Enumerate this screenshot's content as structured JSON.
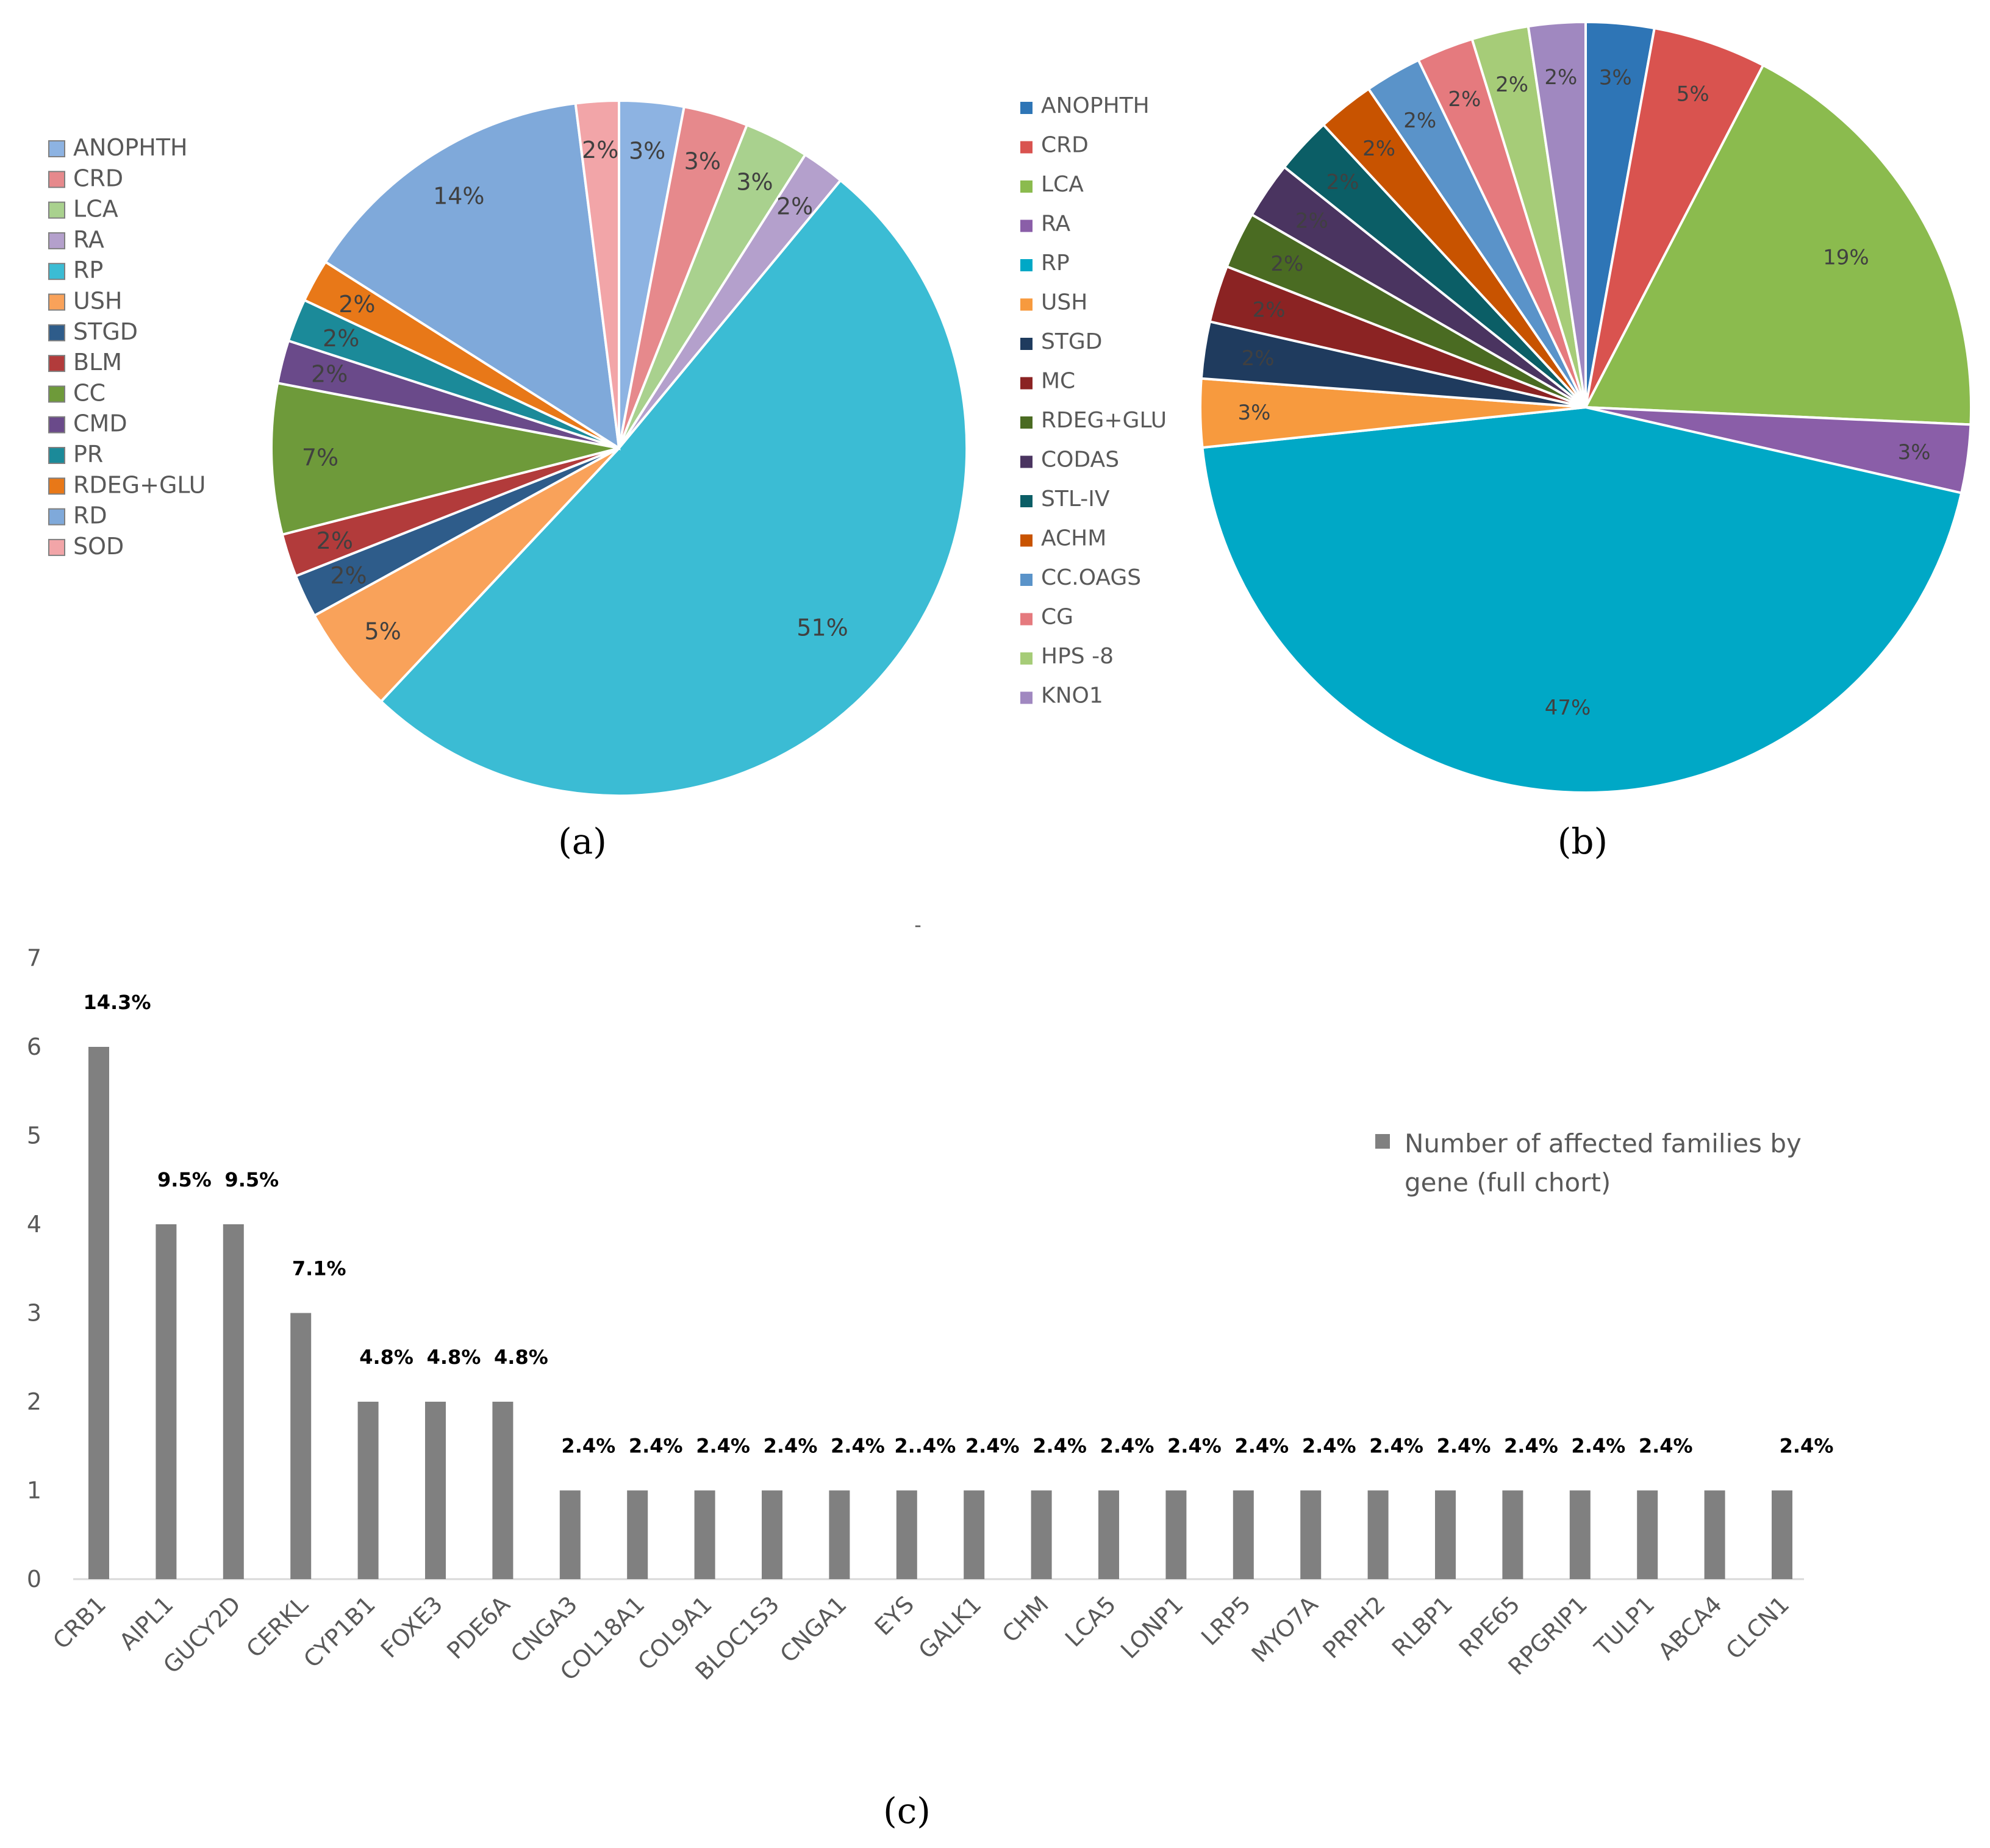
{
  "chart_data": [
    {
      "type": "pie",
      "panel": "(a)",
      "labels": [
        "ANOPHTH",
        "CRD",
        "LCA",
        "RA",
        "RP",
        "USH",
        "STGD",
        "BLM",
        "CC",
        "CMD",
        "PR",
        "RDEG+GLU",
        "RD",
        "SOD"
      ],
      "values": [
        3,
        3,
        3,
        2,
        51,
        5,
        2,
        2,
        7,
        2,
        2,
        2,
        14,
        2
      ],
      "value_labels": [
        "3%",
        "3%",
        "3%",
        "2%",
        "51%",
        "5%",
        "2%",
        "2%",
        "7%",
        "2%",
        "2%",
        "2%",
        "14%",
        "2%"
      ],
      "colors": [
        "#8db3e2",
        "#e6898c",
        "#a9d18e",
        "#b4a0cc",
        "#3bbcd4",
        "#f9a25a",
        "#2e5c8a",
        "#b23b3b",
        "#6e9a3a",
        "#6a4a8a",
        "#1b8a99",
        "#e87818",
        "#7fa9da",
        "#f2a5a8"
      ],
      "legend": "left"
    },
    {
      "type": "pie",
      "panel": "(b)",
      "labels": [
        "ANOPHTH",
        "CRD",
        "LCA",
        "RA",
        "RP",
        "USH",
        "STGD",
        "MC",
        "RDEG+GLU",
        "CODAS",
        "STL-IV",
        "ACHM",
        "CC.OAGS",
        "CG",
        "HPS -8",
        "KNO1"
      ],
      "values": [
        3,
        5,
        19,
        3,
        47,
        3,
        2.5,
        2.5,
        2.5,
        2.5,
        2.5,
        2.5,
        2.5,
        2.5,
        2.5,
        2.5
      ],
      "value_labels": [
        "3%",
        "5%",
        "19%",
        "3%",
        "47%",
        "3%",
        "2%",
        "2%",
        "2%",
        "2%",
        "2%",
        "2%",
        "2%",
        "2%",
        "2%",
        "2%"
      ],
      "colors": [
        "#2e75b6",
        "#d9534f",
        "#8bbb4e",
        "#8a5ea8",
        "#00a8c6",
        "#f79a3e",
        "#1f3b5e",
        "#8b2323",
        "#4a6b22",
        "#4a3460",
        "#0b5e66",
        "#c85300",
        "#5a93c9",
        "#e57a7e",
        "#a6cc78",
        "#a088c0"
      ],
      "legend": "left"
    },
    {
      "type": "bar",
      "panel": "(c)",
      "categories": [
        "CRB1",
        "AIPL1",
        "GUCY2D",
        "CERKL",
        "CYP1B1",
        "FOXE3",
        "PDE6A",
        "CNGA3",
        "COL18A1",
        "COL9A1",
        "BLOC1S3",
        "CNGA1",
        "EYS",
        "GALK1",
        "CHM",
        "LCA5",
        "LONP1",
        "LRP5",
        "MYO7A",
        "PRPH2",
        "RLBP1",
        "RPE65",
        "RPGRIP1",
        "TULP1",
        "ABCA4",
        "CLCN1"
      ],
      "values": [
        6,
        4,
        4,
        3,
        2,
        2,
        2,
        1,
        1,
        1,
        1,
        1,
        1,
        1,
        1,
        1,
        1,
        1,
        1,
        1,
        1,
        1,
        1,
        1,
        1,
        1
      ],
      "data_labels": [
        "14.3%",
        "9.5%",
        "9.5%",
        "7.1%",
        "4.8%",
        "4.8%",
        "4.8%",
        "2.4%",
        "2.4%",
        "2.4%",
        "2.4%",
        "2.4%",
        "2..4%",
        "2.4%",
        "2.4%",
        "2.4%",
        "2.4%",
        "2.4%",
        "2.4%",
        "2.4%",
        "2.4%",
        "2.4%",
        "2.4%",
        "2.4%",
        "",
        "2.4%"
      ],
      "yticks": [
        "0",
        "1",
        "2",
        "3",
        "4",
        "5",
        "6",
        "7"
      ],
      "ylim": [
        0,
        7
      ],
      "legend_label": "Number of affected families by gene (full chort)",
      "legend_lines": [
        "Number of affected families by",
        "gene (full chort)"
      ],
      "bar_color": "#808080",
      "legend": "right"
    }
  ],
  "caption_dash": "-"
}
